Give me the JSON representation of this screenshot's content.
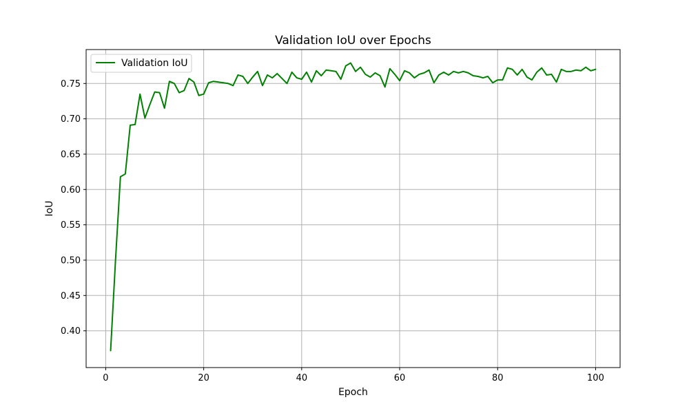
{
  "chart_data": {
    "type": "line",
    "title": "Validation IoU over Epochs",
    "xlabel": "Epoch",
    "ylabel": "IoU",
    "xlim": [
      -4,
      105
    ],
    "ylim": [
      0.348,
      0.798
    ],
    "xticks": [
      0,
      20,
      40,
      60,
      80,
      100
    ],
    "yticks": [
      0.4,
      0.45,
      0.5,
      0.55,
      0.6,
      0.65,
      0.7,
      0.75
    ],
    "grid": true,
    "legend_position": "top-left",
    "series": [
      {
        "name": "Validation IoU",
        "color": "#008000",
        "x": [
          1,
          2,
          3,
          4,
          5,
          6,
          7,
          8,
          9,
          10,
          11,
          12,
          13,
          14,
          15,
          16,
          17,
          18,
          19,
          20,
          21,
          22,
          23,
          24,
          25,
          26,
          27,
          28,
          29,
          30,
          31,
          32,
          33,
          34,
          35,
          36,
          37,
          38,
          39,
          40,
          41,
          42,
          43,
          44,
          45,
          46,
          47,
          48,
          49,
          50,
          51,
          52,
          53,
          54,
          55,
          56,
          57,
          58,
          59,
          60,
          61,
          62,
          63,
          64,
          65,
          66,
          67,
          68,
          69,
          70,
          71,
          72,
          73,
          74,
          75,
          76,
          77,
          78,
          79,
          80,
          81,
          82,
          83,
          84,
          85,
          86,
          87,
          88,
          89,
          90,
          91,
          92,
          93,
          94,
          95,
          96,
          97,
          98,
          99,
          100
        ],
        "values": [
          0.372,
          0.5,
          0.618,
          0.622,
          0.691,
          0.692,
          0.735,
          0.701,
          0.72,
          0.738,
          0.737,
          0.715,
          0.753,
          0.75,
          0.737,
          0.74,
          0.757,
          0.752,
          0.733,
          0.735,
          0.751,
          0.753,
          0.752,
          0.751,
          0.75,
          0.747,
          0.762,
          0.76,
          0.75,
          0.759,
          0.767,
          0.747,
          0.762,
          0.758,
          0.764,
          0.757,
          0.75,
          0.766,
          0.758,
          0.756,
          0.766,
          0.752,
          0.768,
          0.761,
          0.769,
          0.768,
          0.767,
          0.756,
          0.775,
          0.779,
          0.767,
          0.773,
          0.763,
          0.759,
          0.765,
          0.761,
          0.745,
          0.771,
          0.763,
          0.754,
          0.768,
          0.765,
          0.758,
          0.763,
          0.765,
          0.769,
          0.751,
          0.762,
          0.766,
          0.762,
          0.767,
          0.765,
          0.767,
          0.765,
          0.761,
          0.76,
          0.758,
          0.76,
          0.751,
          0.755,
          0.755,
          0.772,
          0.77,
          0.762,
          0.77,
          0.759,
          0.755,
          0.766,
          0.772,
          0.762,
          0.763,
          0.752,
          0.77,
          0.767,
          0.767,
          0.769,
          0.768,
          0.773,
          0.768,
          0.77
        ]
      }
    ]
  }
}
